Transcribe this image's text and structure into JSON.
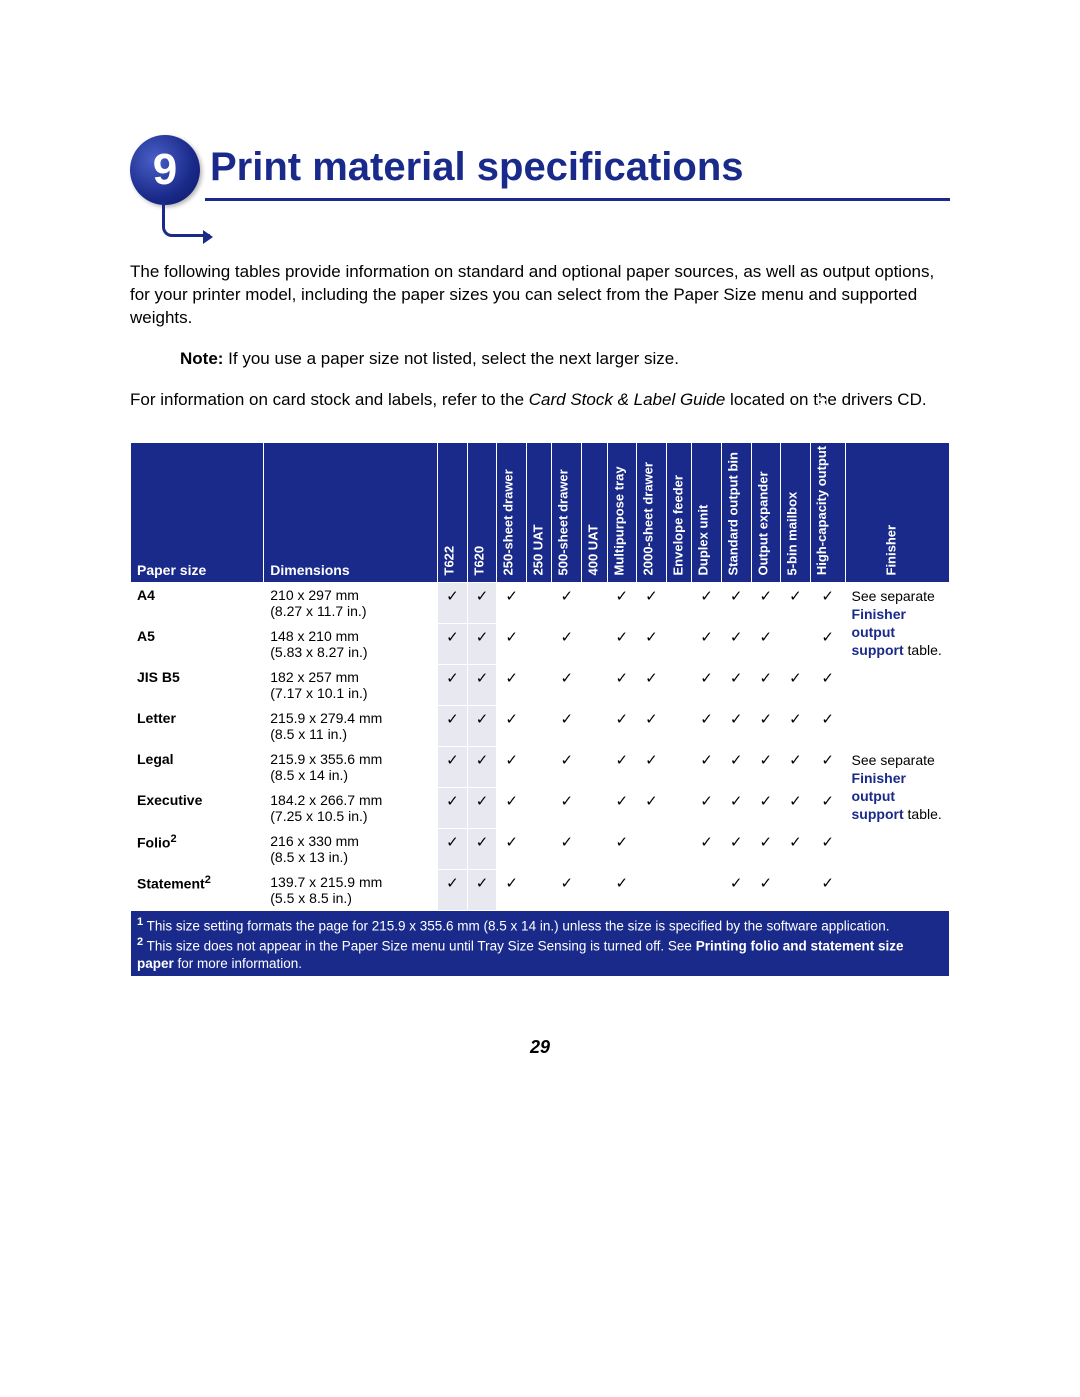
{
  "chapter": {
    "number": "9",
    "title": "Print material specifications"
  },
  "intro": "The following tables provide information on standard and optional paper sources, as well as output options, for your printer model, including the paper sizes you can select from the Paper Size menu and supported weights.",
  "note_label": "Note:",
  "note_text": " If you use a paper size not listed, select the next larger size.",
  "ref_text1": "For information on card stock and labels, refer to the ",
  "ref_ital": "Card Stock & Label Guide",
  "ref_text2": " located on the drivers CD.",
  "columns": {
    "paper_size": "Paper size",
    "dimensions": "Dimensions",
    "c": [
      "T622",
      "T620",
      "250-sheet drawer",
      "250 UAT",
      "500-sheet drawer",
      "400 UAT",
      "Multipurpose tray",
      "2000-sheet drawer",
      "Envelope feeder",
      "Duplex unit",
      "Standard output bin",
      "Output expander",
      "5-bin mailbox",
      "High-capacity output stacker",
      "Finisher"
    ]
  },
  "rows": [
    {
      "name": "A4",
      "dim": "210 x 297 mm (8.27 x 11.7 in.)",
      "v": [
        1,
        1,
        1,
        0,
        1,
        0,
        1,
        1,
        0,
        1,
        1,
        1,
        1,
        1
      ]
    },
    {
      "name": "A5",
      "dim": "148 x 210 mm (5.83 x 8.27 in.)",
      "v": [
        1,
        1,
        1,
        0,
        1,
        0,
        1,
        1,
        0,
        1,
        1,
        1,
        0,
        1
      ]
    },
    {
      "name": "JIS B5",
      "dim": "182 x 257 mm (7.17 x 10.1 in.)",
      "v": [
        1,
        1,
        1,
        0,
        1,
        0,
        1,
        1,
        0,
        1,
        1,
        1,
        1,
        1
      ]
    },
    {
      "name": "Letter",
      "dim": "215.9 x 279.4 mm (8.5 x 11 in.)",
      "v": [
        1,
        1,
        1,
        0,
        1,
        0,
        1,
        1,
        0,
        1,
        1,
        1,
        1,
        1
      ]
    },
    {
      "name": "Legal",
      "dim": "215.9 x 355.6 mm (8.5 x 14 in.)",
      "v": [
        1,
        1,
        1,
        0,
        1,
        0,
        1,
        1,
        0,
        1,
        1,
        1,
        1,
        1
      ]
    },
    {
      "name": "Executive",
      "dim": "184.2 x 266.7 mm (7.25 x 10.5 in.)",
      "v": [
        1,
        1,
        1,
        0,
        1,
        0,
        1,
        1,
        0,
        1,
        1,
        1,
        1,
        1
      ]
    },
    {
      "name": "Folio",
      "sup": "2",
      "dim": "216 x 330 mm (8.5 x 13 in.)",
      "v": [
        1,
        1,
        1,
        0,
        1,
        0,
        1,
        0,
        0,
        1,
        1,
        1,
        1,
        1
      ]
    },
    {
      "name": "Statement",
      "sup": "2",
      "dim": "139.7 x 215.9 mm (5.5 x 8.5 in.)",
      "v": [
        1,
        1,
        1,
        0,
        1,
        0,
        1,
        0,
        0,
        0,
        1,
        1,
        0,
        1
      ]
    }
  ],
  "finisher_cell": {
    "see": "See separate ",
    "link": "Finisher output support",
    "tail": " table."
  },
  "footnote1_sup": "1",
  "footnote1": " This size setting formats the page for 215.9 x 355.6 mm (8.5 x 14 in.) unless the size is specified by the software application.",
  "footnote2_sup": "2",
  "footnote2a": " This size does not appear in the Paper Size menu until Tray Size Sensing is turned off. See ",
  "footnote2_link": "Printing folio and statement size paper",
  "footnote2b": " for more information.",
  "page_number": "29",
  "colors": {
    "brand": "#1a2a8a",
    "hl": "#e8e8f0"
  },
  "check": "✓"
}
